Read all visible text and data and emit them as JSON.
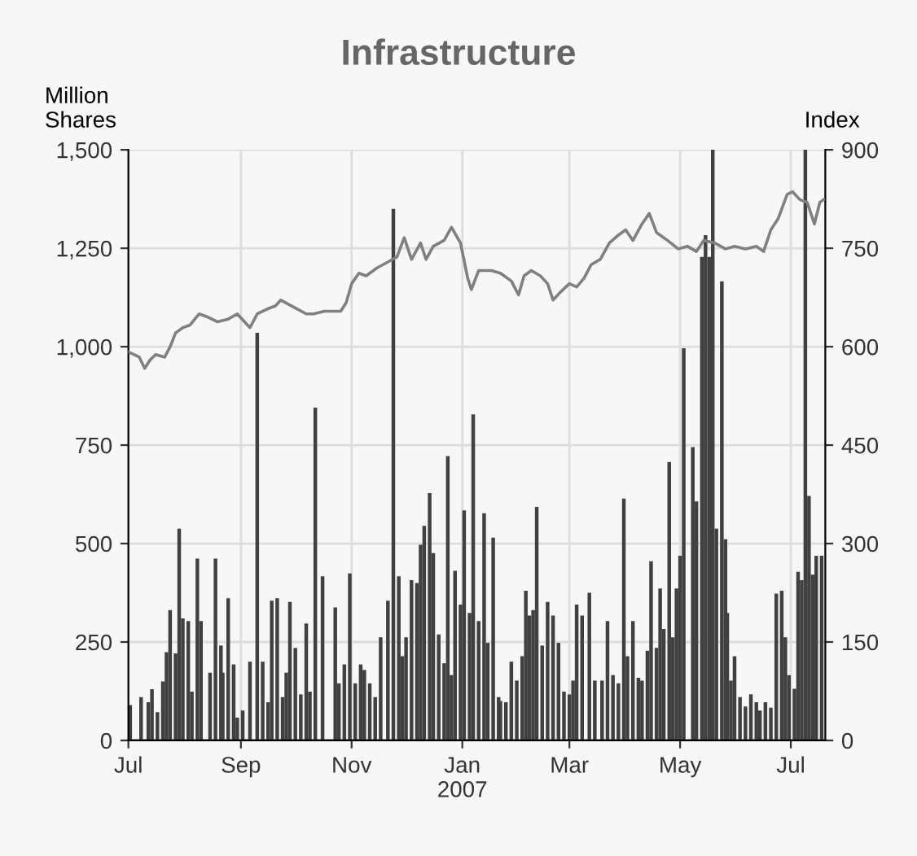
{
  "chart_data": {
    "type": "bar",
    "title": "Infrastructure",
    "ylabel": "Million\nShares",
    "y2label": "Index",
    "xlim": [
      "2006-07-01",
      "2007-07-20"
    ],
    "xticks": [
      {
        "value": "2006-07-01",
        "label": "Jul"
      },
      {
        "value": "2006-09-01",
        "label": "Sep"
      },
      {
        "value": "2006-11-01",
        "label": "Nov"
      },
      {
        "value": "2007-01-01",
        "label": "Jan\n2007"
      },
      {
        "value": "2007-03-01",
        "label": "Mar"
      },
      {
        "value": "2007-05-01",
        "label": "May"
      },
      {
        "value": "2007-07-01",
        "label": "Jul"
      }
    ],
    "ylim": [
      0,
      1500
    ],
    "yticks": [
      0,
      {
        "value": 250,
        "label": "250"
      },
      {
        "value": 500,
        "label": "500"
      },
      {
        "value": 750,
        "label": "750"
      },
      {
        "value": 1000,
        "label": "1,000"
      },
      {
        "value": 1250,
        "label": "1,250"
      },
      {
        "value": 1500,
        "label": "1,500"
      }
    ],
    "y2lim": [
      0,
      900
    ],
    "y2ticks": [
      0,
      150,
      300,
      450,
      600,
      750,
      900
    ],
    "grid": true,
    "legend": false,
    "series": [
      {
        "color": "#404040",
        "x": [
          "2006-07-02",
          "2006-07-08",
          "2006-07-12",
          "2006-07-14",
          "2006-07-17",
          "2006-07-20",
          "2006-07-22",
          "2006-07-24",
          "2006-07-27",
          "2006-07-29",
          "2006-07-31",
          "2006-08-03",
          "2006-08-05",
          "2006-08-08",
          "2006-08-10",
          "2006-08-15",
          "2006-08-18",
          "2006-08-21",
          "2006-08-22",
          "2006-08-25",
          "2006-08-28",
          "2006-08-30",
          "2006-09-02",
          "2006-09-06",
          "2006-09-10",
          "2006-09-13",
          "2006-09-16",
          "2006-09-18",
          "2006-09-21",
          "2006-09-24",
          "2006-09-26",
          "2006-09-28",
          "2006-10-01",
          "2006-10-04",
          "2006-10-07",
          "2006-10-09",
          "2006-10-12",
          "2006-10-16",
          "2006-10-23",
          "2006-10-25",
          "2006-10-28",
          "2006-10-31",
          "2006-11-03",
          "2006-11-06",
          "2006-11-08",
          "2006-11-11",
          "2006-11-14",
          "2006-11-17",
          "2006-11-21",
          "2006-11-24",
          "2006-11-27",
          "2006-11-29",
          "2006-12-01",
          "2006-12-04",
          "2006-12-07",
          "2006-12-09",
          "2006-12-11",
          "2006-12-14",
          "2006-12-16",
          "2006-12-19",
          "2006-12-22",
          "2006-12-24",
          "2006-12-26",
          "2006-12-28",
          "2006-12-31",
          "2007-01-02",
          "2007-01-05",
          "2007-01-07",
          "2007-01-10",
          "2007-01-13",
          "2007-01-15",
          "2007-01-18",
          "2007-01-21",
          "2007-01-22",
          "2007-01-25",
          "2007-01-28",
          "2007-01-31",
          "2007-02-03",
          "2007-02-05",
          "2007-02-07",
          "2007-02-09",
          "2007-02-11",
          "2007-02-14",
          "2007-02-17",
          "2007-02-20",
          "2007-02-23",
          "2007-02-26",
          "2007-03-01",
          "2007-03-03",
          "2007-03-05",
          "2007-03-08",
          "2007-03-12",
          "2007-03-15",
          "2007-03-19",
          "2007-03-22",
          "2007-03-25",
          "2007-03-28",
          "2007-03-31",
          "2007-04-02",
          "2007-04-05",
          "2007-04-08",
          "2007-04-10",
          "2007-04-13",
          "2007-04-15",
          "2007-04-18",
          "2007-04-20",
          "2007-04-22",
          "2007-04-25",
          "2007-04-27",
          "2007-04-29",
          "2007-05-01",
          "2007-05-03",
          "2007-05-08",
          "2007-05-10",
          "2007-05-13",
          "2007-05-15",
          "2007-05-17",
          "2007-05-19",
          "2007-05-21",
          "2007-05-24",
          "2007-05-26",
          "2007-05-27",
          "2007-05-29",
          "2007-05-31",
          "2007-06-03",
          "2007-06-06",
          "2007-06-09",
          "2007-06-12",
          "2007-06-14",
          "2007-06-17",
          "2007-06-20",
          "2007-06-23",
          "2007-06-26",
          "2007-06-28",
          "2007-06-30",
          "2007-07-03",
          "2007-07-05",
          "2007-07-07",
          "2007-07-09",
          "2007-07-11",
          "2007-07-13",
          "2007-07-15",
          "2007-07-18"
        ],
        "values": [
          90,
          110,
          97,
          130,
          72,
          150,
          224,
          331,
          221,
          538,
          310,
          303,
          124,
          462,
          303,
          172,
          462,
          241,
          172,
          361,
          193,
          58,
          76,
          200,
          1035,
          200,
          97,
          355,
          361,
          110,
          172,
          352,
          235,
          117,
          297,
          124,
          845,
          417,
          338,
          145,
          193,
          424,
          145,
          193,
          179,
          145,
          110,
          262,
          355,
          1350,
          417,
          214,
          262,
          407,
          400,
          497,
          545,
          628,
          476,
          269,
          196,
          722,
          166,
          431,
          345,
          584,
          324,
          828,
          303,
          577,
          248,
          515,
          110,
          100,
          97,
          200,
          152,
          214,
          380,
          317,
          331,
          593,
          241,
          352,
          317,
          248,
          124,
          117,
          152,
          345,
          317,
          375,
          152,
          152,
          303,
          166,
          145,
          614,
          214,
          303,
          159,
          152,
          228,
          455,
          235,
          386,
          283,
          707,
          262,
          386,
          469,
          996,
          745,
          607,
          1228,
          1283,
          1228,
          1500,
          538,
          1166,
          511,
          324,
          152,
          214,
          110,
          86,
          117,
          97,
          76,
          97,
          83,
          373,
          380,
          262,
          166,
          131,
          428,
          407,
          1500,
          621,
          421,
          469,
          469
        ]
      },
      {
        "type": "line",
        "axis": "y2",
        "color": "#808080",
        "x": [
          "2006-07-01",
          "2006-07-04",
          "2006-07-07",
          "2006-07-10",
          "2006-07-13",
          "2006-07-16",
          "2006-07-21",
          "2006-07-24",
          "2006-07-27",
          "2006-07-31",
          "2006-08-04",
          "2006-08-09",
          "2006-08-13",
          "2006-08-19",
          "2006-08-25",
          "2006-08-30",
          "2006-09-06",
          "2006-09-10",
          "2006-09-16",
          "2006-09-20",
          "2006-09-23",
          "2006-09-29",
          "2006-10-07",
          "2006-10-11",
          "2006-10-17",
          "2006-10-26",
          "2006-10-29",
          "2006-11-01",
          "2006-11-05",
          "2006-11-09",
          "2006-11-15",
          "2006-11-21",
          "2006-11-26",
          "2006-11-30",
          "2006-12-04",
          "2006-12-09",
          "2006-12-12",
          "2006-12-16",
          "2006-12-22",
          "2006-12-26",
          "2006-12-31",
          "2007-01-04",
          "2007-01-06",
          "2007-01-10",
          "2007-01-17",
          "2007-01-22",
          "2007-01-28",
          "2007-02-01",
          "2007-02-04",
          "2007-02-08",
          "2007-02-13",
          "2007-02-17",
          "2007-02-20",
          "2007-02-24",
          "2007-03-01",
          "2007-03-05",
          "2007-03-09",
          "2007-03-13",
          "2007-03-18",
          "2007-03-23",
          "2007-03-28",
          "2007-04-01",
          "2007-04-05",
          "2007-04-10",
          "2007-04-14",
          "2007-04-18",
          "2007-04-24",
          "2007-04-30",
          "2007-05-05",
          "2007-05-10",
          "2007-05-14",
          "2007-05-20",
          "2007-05-26",
          "2007-05-31",
          "2007-06-06",
          "2007-06-12",
          "2007-06-16",
          "2007-06-20",
          "2007-06-24",
          "2007-06-29",
          "2007-07-02",
          "2007-07-06",
          "2007-07-10",
          "2007-07-14",
          "2007-07-17",
          "2007-07-19"
        ],
        "values": [
          592,
          588,
          584,
          567,
          580,
          588,
          584,
          600,
          621,
          629,
          633,
          650,
          646,
          638,
          642,
          650,
          629,
          650,
          658,
          662,
          671,
          662,
          650,
          650,
          654,
          654,
          667,
          696,
          712,
          708,
          720,
          729,
          737,
          766,
          733,
          758,
          733,
          753,
          762,
          782,
          758,
          704,
          687,
          716,
          716,
          712,
          700,
          679,
          708,
          716,
          708,
          696,
          671,
          683,
          696,
          691,
          704,
          725,
          733,
          758,
          770,
          778,
          762,
          787,
          803,
          774,
          762,
          749,
          753,
          745,
          762,
          758,
          749,
          753,
          749,
          753,
          745,
          778,
          795,
          832,
          836,
          824,
          820,
          787,
          820,
          824
        ]
      }
    ]
  }
}
